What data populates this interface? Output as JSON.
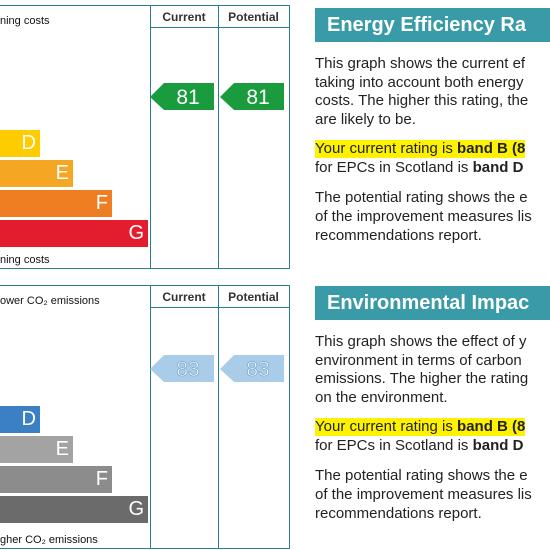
{
  "sections": [
    {
      "top_label": "ning costs",
      "bottom_label": "ning costs",
      "columns": [
        "Current",
        "Potential"
      ],
      "current": "81",
      "potential": "81",
      "bands": [
        "D",
        "E",
        "F",
        "G"
      ],
      "title": "Energy Efficiency Ra",
      "intro": [
        "This graph shows the current ef",
        "taking into account both energy",
        "costs. The higher this rating, the",
        "are likely to be."
      ],
      "highlight": [
        [
          "Your current rating is ",
          "band B (8"
        ],
        [
          "for EPCs in Scotland is ",
          "band D"
        ]
      ],
      "potential_text": [
        "The potential rating shows the e",
        "of the improvement measures lis",
        "recommendations report."
      ]
    },
    {
      "top_label": "ower CO₂ emissions",
      "bottom_label": "gher CO₂ emissions",
      "columns": [
        "Current",
        "Potential"
      ],
      "current": "83",
      "potential": "83",
      "bands": [
        "D",
        "E",
        "F",
        "G"
      ],
      "title": "Environmental Impac",
      "intro": [
        "This graph shows the effect of y",
        "environment in terms of carbon",
        "emissions. The higher the rating",
        "on the environment."
      ],
      "highlight": [
        [
          "Your current rating is ",
          "band B (8"
        ],
        [
          "for EPCs in Scotland is ",
          "band D"
        ]
      ],
      "potential_text": [
        "The potential rating shows the e",
        "of the improvement measures lis",
        "recommendations report."
      ]
    }
  ]
}
